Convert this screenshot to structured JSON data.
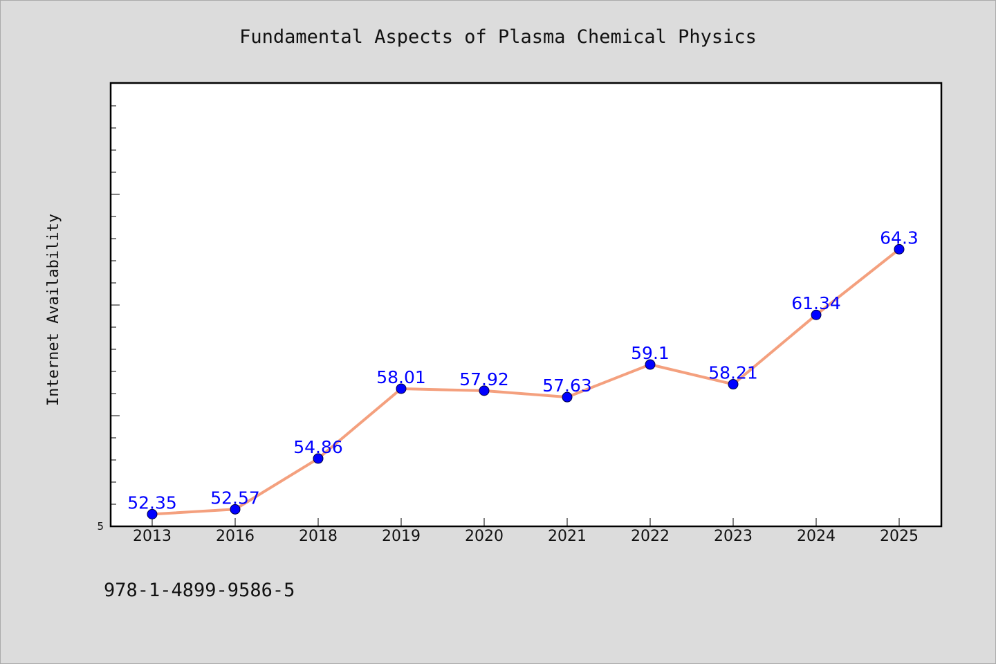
{
  "chart_data": {
    "type": "line",
    "title": "Fundamental Aspects of Plasma Chemical Physics",
    "xlabel": "",
    "ylabel": "Internet Availability",
    "categories": [
      "2013",
      "2016",
      "2018",
      "2019",
      "2020",
      "2021",
      "2022",
      "2023",
      "2024",
      "2025"
    ],
    "series": [
      {
        "values": [
          52.35,
          52.57,
          54.86,
          58.01,
          57.92,
          57.63,
          59.1,
          58.21,
          61.34,
          64.3
        ]
      }
    ],
    "data_labels": [
      "52.35",
      "52.57",
      "54.86",
      "58.01",
      "57.92",
      "57.63",
      "59.1",
      "58.21",
      "61.34",
      "64.3"
    ],
    "y_tick_labels": [
      "5"
    ],
    "ylim": [
      51.8,
      71.8
    ],
    "grid": false,
    "legend": "none",
    "colors": {
      "line": "#f4a07e",
      "marker": "#0000ff",
      "data_label": "#0000ff",
      "background": "#dcdcdc",
      "plot_background": "#ffffff"
    }
  },
  "footer": {
    "isbn": "978-1-4899-9586-5"
  }
}
